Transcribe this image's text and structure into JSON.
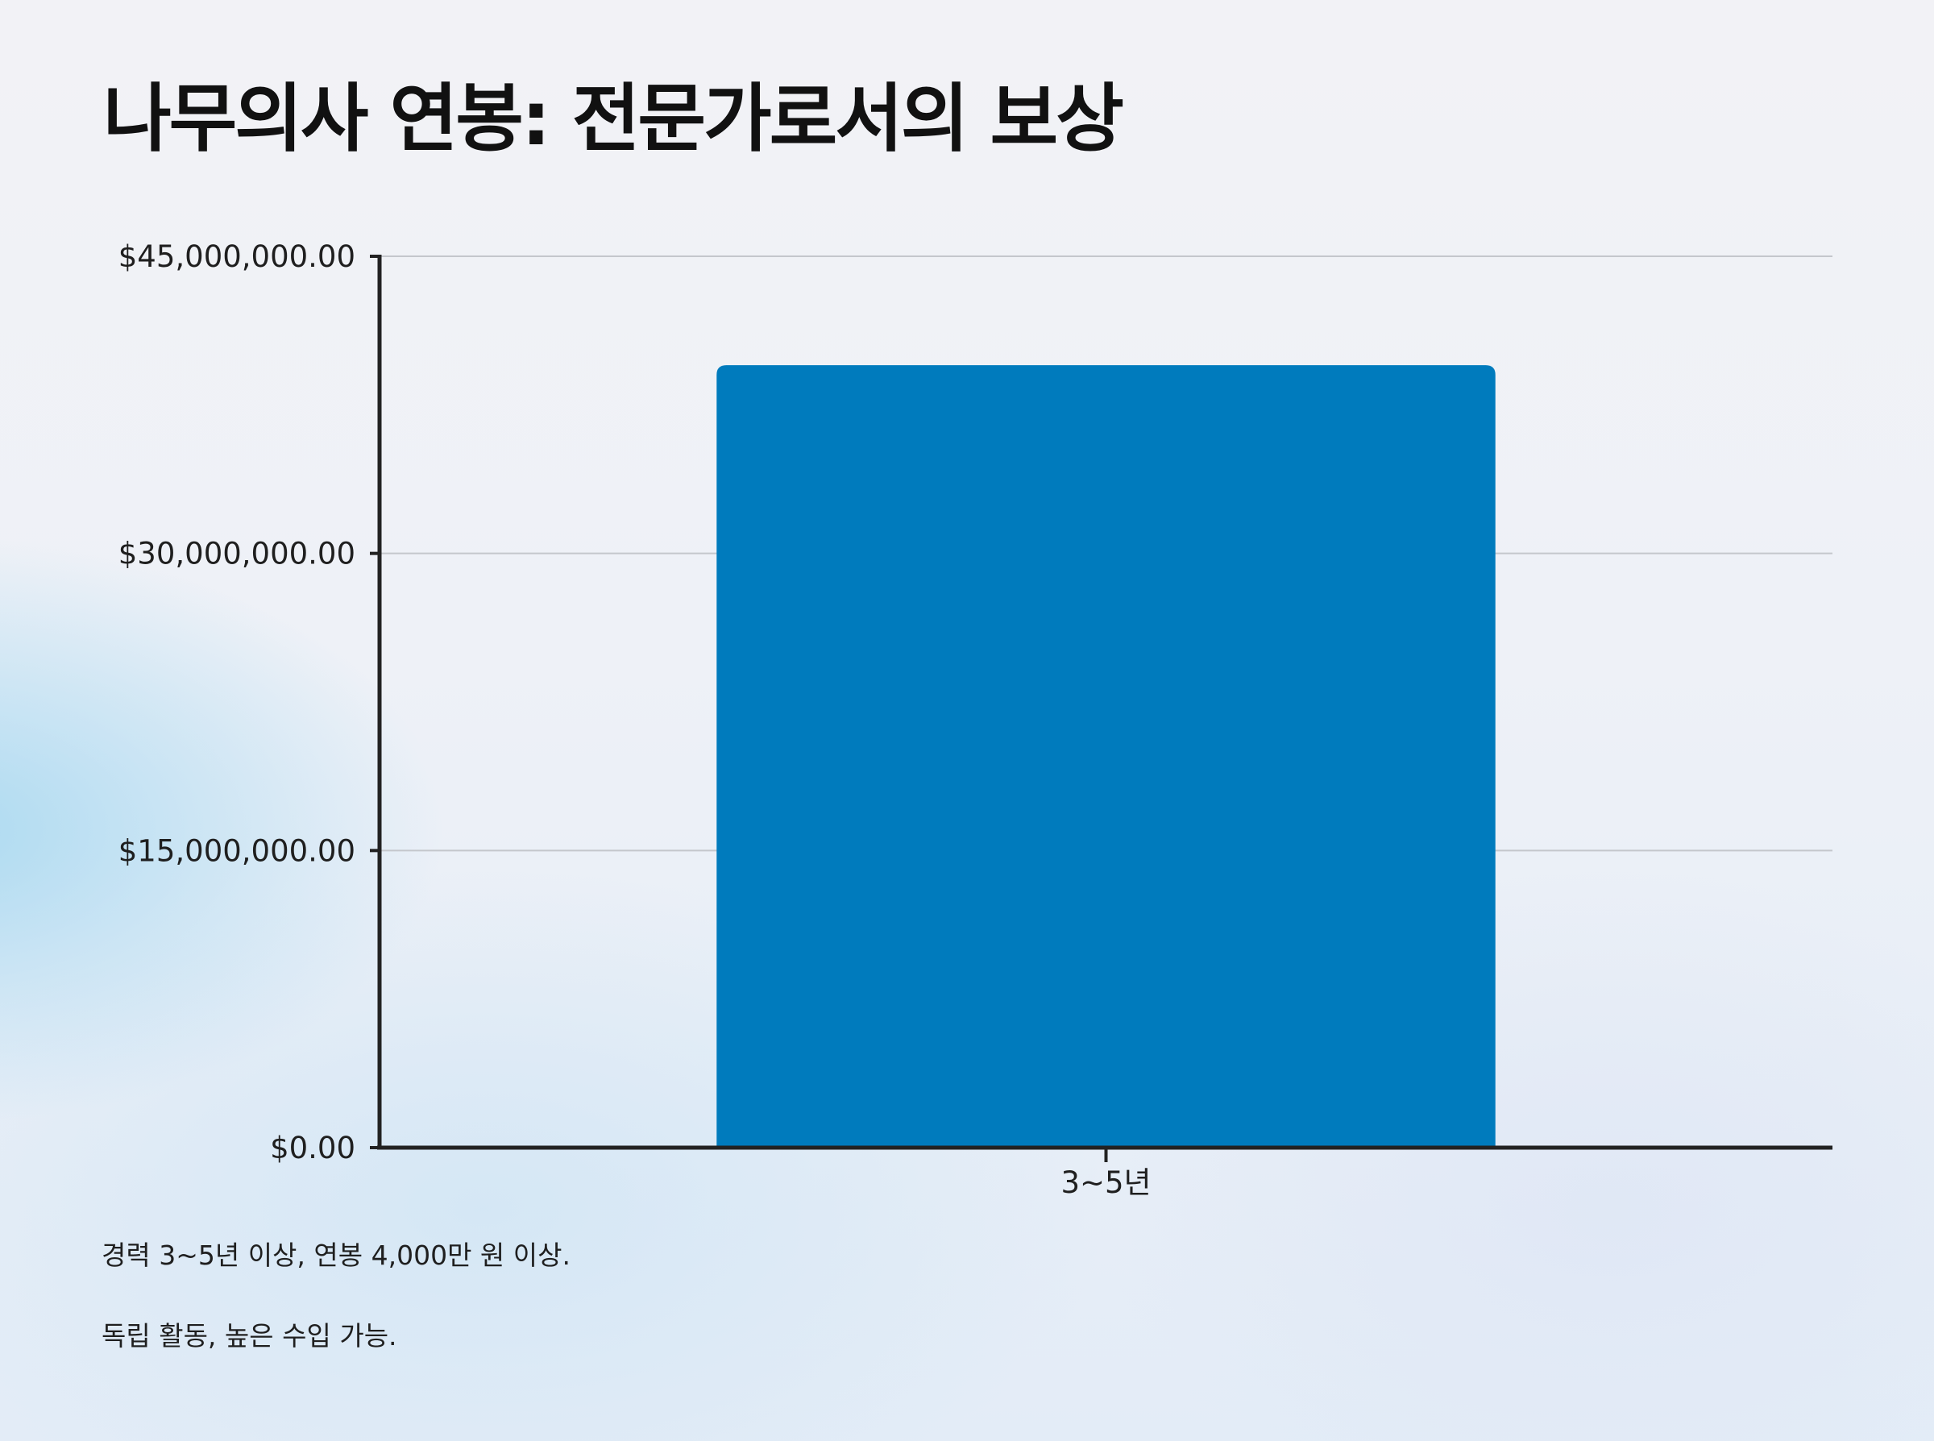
{
  "title": "나무의사 연봉: 전문가로서의 보상",
  "chart_data": {
    "type": "bar",
    "categories": [
      "3~5년"
    ],
    "values": [
      39500000
    ],
    "ylim": [
      0,
      45000000
    ],
    "yticks": [
      0,
      15000000,
      30000000,
      45000000
    ],
    "ytick_labels": [
      "$0.00",
      "$15,000,000.00",
      "$30,000,000.00",
      "$45,000,000.00"
    ],
    "grid": true,
    "bar_color": "#007bbd",
    "title": "",
    "xlabel": "",
    "ylabel": ""
  },
  "notes": [
    "경력 3~5년 이상, 연봉 4,000만 원 이상.",
    "독립 활동, 높은 수입 가능."
  ]
}
